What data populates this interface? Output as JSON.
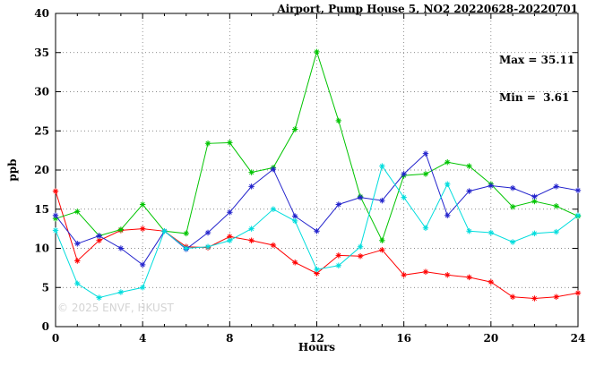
{
  "title": "Airport, Pump House 5, NO2 20220628-20220701",
  "annotation": {
    "max": "Max = 35.11",
    "min": "Min =  3.61"
  },
  "watermark": "© 2025 ENVF, HKUST",
  "chart_data": {
    "type": "line",
    "title": "Airport, Pump House 5, NO2 20220628-20220701",
    "xlabel": "Hours",
    "ylabel": "ppb",
    "xlim": [
      0,
      24
    ],
    "ylim": [
      0,
      40
    ],
    "xticks": [
      0,
      4,
      8,
      12,
      16,
      20,
      24
    ],
    "yticks": [
      0,
      5,
      10,
      15,
      20,
      25,
      30,
      35,
      40
    ],
    "grid": true,
    "legend_position": "none",
    "marker": "asterisk",
    "x": [
      0,
      1,
      2,
      3,
      4,
      5,
      6,
      7,
      8,
      9,
      10,
      11,
      12,
      13,
      14,
      15,
      16,
      17,
      18,
      19,
      20,
      21,
      22,
      23,
      24
    ],
    "series": [
      {
        "name": "red",
        "color": "#ff0000",
        "values": [
          17.3,
          8.4,
          11.0,
          12.3,
          12.5,
          12.2,
          10.2,
          10.1,
          11.5,
          11.0,
          10.4,
          8.2,
          6.8,
          9.1,
          9.0,
          9.8,
          6.6,
          7.0,
          6.6,
          6.3,
          5.7,
          3.8,
          3.6,
          3.8,
          4.3
        ]
      },
      {
        "name": "green",
        "color": "#00c400",
        "values": [
          13.8,
          14.7,
          11.6,
          12.4,
          15.6,
          12.2,
          11.9,
          23.4,
          23.5,
          19.7,
          20.3,
          25.2,
          35.1,
          26.3,
          16.6,
          11.0,
          19.3,
          19.5,
          21.0,
          20.5,
          18.2,
          15.3,
          16.0,
          15.4,
          14.1
        ]
      },
      {
        "name": "blue",
        "color": "#2222cc",
        "values": [
          14.2,
          10.6,
          11.6,
          10.0,
          7.9,
          12.2,
          9.9,
          12.0,
          14.6,
          17.9,
          20.1,
          14.1,
          12.2,
          15.6,
          16.5,
          16.1,
          19.5,
          22.1,
          14.2,
          17.3,
          18.0,
          17.7,
          16.6,
          17.9,
          17.4
        ]
      },
      {
        "name": "cyan",
        "color": "#00dddd",
        "values": [
          12.3,
          5.5,
          3.7,
          4.4,
          5.0,
          12.2,
          10.0,
          10.2,
          11.0,
          12.5,
          15.0,
          13.5,
          7.3,
          7.8,
          10.2,
          20.5,
          16.5,
          12.6,
          18.2,
          12.2,
          12.0,
          10.8,
          11.9,
          12.1,
          14.2
        ]
      }
    ],
    "stats": {
      "max": 35.11,
      "min": 3.61
    }
  }
}
